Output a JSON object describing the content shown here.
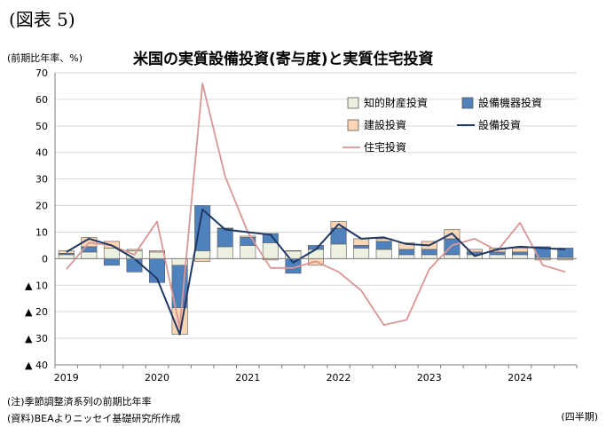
{
  "figure_label": "(図表 5)",
  "unit_label": "(前期比年率、%)",
  "footnote_note": "(注)季節調整済系列の前期比年率",
  "footnote_source": "(資料)BEAよりニッセイ基礎研究所作成",
  "period_label": "(四半期)",
  "colors": {
    "ip": "#ebf1de",
    "equipment": "#4f81bd",
    "structures": "#fcd5b5",
    "total_line": "#1f3864",
    "residential_line": "#d99694",
    "bar_border": "#595959",
    "grid": "#d9d9d9"
  },
  "chart_data": {
    "type": "bar",
    "title": "米国の実質設備投資(寄与度)と実質住宅投資",
    "ylim": [
      -40,
      70
    ],
    "yticks": [
      {
        "value": 70,
        "label": "70"
      },
      {
        "value": 60,
        "label": "60"
      },
      {
        "value": 50,
        "label": "50"
      },
      {
        "value": 40,
        "label": "40"
      },
      {
        "value": 30,
        "label": "30"
      },
      {
        "value": 20,
        "label": "20"
      },
      {
        "value": 10,
        "label": "10"
      },
      {
        "value": 0,
        "label": "0"
      },
      {
        "value": -10,
        "label": "▲ 10"
      },
      {
        "value": -20,
        "label": "▲ 20"
      },
      {
        "value": -30,
        "label": "▲ 30"
      },
      {
        "value": -40,
        "label": "▲ 40"
      }
    ],
    "x_labels": [
      {
        "index": 0,
        "label": "2019"
      },
      {
        "index": 4,
        "label": "2020"
      },
      {
        "index": 8,
        "label": "2021"
      },
      {
        "index": 12,
        "label": "2022"
      },
      {
        "index": 16,
        "label": "2023"
      },
      {
        "index": 20,
        "label": "2024"
      }
    ],
    "quarters": 23,
    "grid": true,
    "legend_position": "top-right",
    "stacked_series": [
      {
        "key": "ip",
        "name": "知的財産投資",
        "values": [
          1.5,
          2.5,
          4,
          3,
          2.5,
          -2.5,
          3,
          4.5,
          5,
          6,
          3,
          3.5,
          5.5,
          4,
          3.5,
          1.5,
          1.5,
          1.5,
          1.5,
          1.5,
          1.5,
          0.5,
          0.5
        ]
      },
      {
        "key": "equipment",
        "name": "設備機器投資",
        "values": [
          0.5,
          2,
          -2.5,
          -5,
          -9,
          -16,
          17,
          7,
          3,
          3.5,
          -5.5,
          1.5,
          6,
          1,
          3,
          2,
          2,
          6,
          1,
          1,
          1,
          4,
          3.5
        ]
      },
      {
        "key": "structures",
        "name": "建設投資",
        "values": [
          1,
          3.5,
          2.5,
          0.5,
          0.5,
          -10,
          -1,
          0,
          0.5,
          -0.5,
          0,
          -2.5,
          2.5,
          2.5,
          1,
          2.5,
          3,
          3.5,
          1,
          1.5,
          1.5,
          -0.5,
          -0.5
        ]
      }
    ],
    "line_series": [
      {
        "key": "total",
        "name": "設備投資",
        "values": [
          2.5,
          7.5,
          5,
          0,
          -7.5,
          -28.5,
          18.5,
          11,
          10,
          9,
          -1.5,
          3.5,
          13,
          7.5,
          8,
          5.5,
          5,
          9.5,
          1,
          3.5,
          4.5,
          4,
          3.5
        ]
      },
      {
        "key": "residential",
        "name": "住宅投資",
        "values": [
          -4,
          6,
          5,
          1.5,
          14,
          -26,
          66,
          31,
          10,
          -3.5,
          -3.5,
          -1,
          -5,
          -12,
          -25,
          -23,
          -4,
          5,
          7.5,
          3,
          13.5,
          -2.5,
          -5
        ]
      }
    ]
  }
}
